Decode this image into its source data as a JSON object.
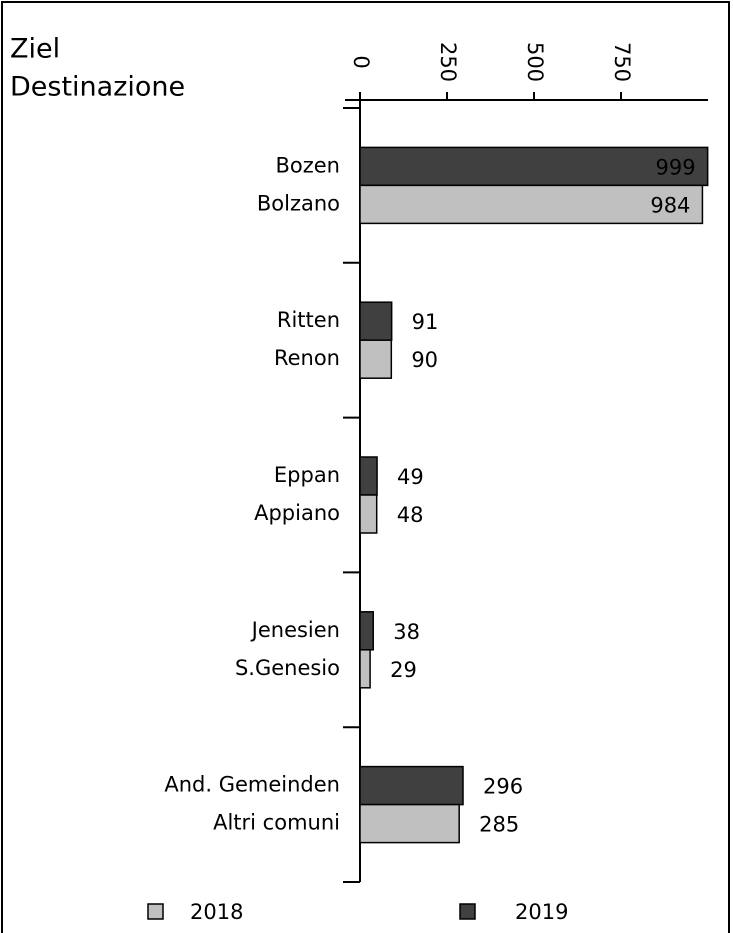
{
  "chart_data": {
    "type": "bar",
    "orientation": "horizontal",
    "title": [
      "Ziel",
      "Destinazione"
    ],
    "categories": [
      [
        "Bozen",
        "Bolzano"
      ],
      [
        "Ritten",
        "Renon"
      ],
      [
        "Eppan",
        "Appiano"
      ],
      [
        "Jenesien",
        "S.Genesio"
      ],
      [
        "And. Gemeinden",
        "Altri comuni"
      ]
    ],
    "series": [
      {
        "name": "2018",
        "color": "#c0c0c0",
        "values": [
          984,
          90,
          48,
          29,
          285
        ]
      },
      {
        "name": "2019",
        "color": "#404040",
        "values": [
          999,
          91,
          49,
          38,
          296
        ]
      }
    ],
    "xlim": [
      0,
      1000
    ],
    "xticks": [
      0,
      250,
      500,
      750
    ],
    "legend": "bottom"
  }
}
